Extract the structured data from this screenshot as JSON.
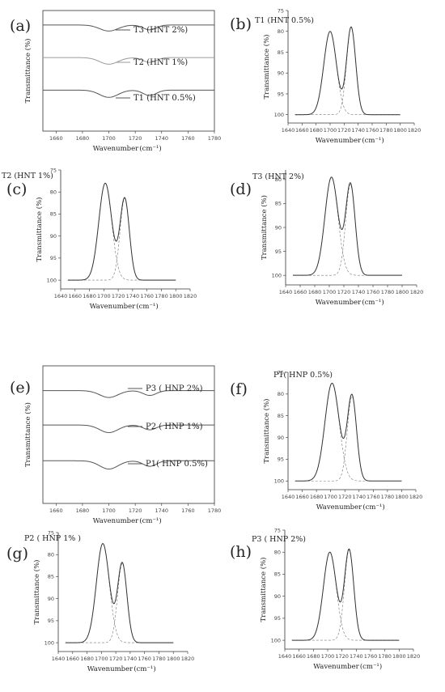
{
  "figure": {
    "panels": [
      "(a)",
      "(b)",
      "(c)",
      "(d)",
      "(e)",
      "(f)",
      "(g)",
      "(h)"
    ]
  },
  "chart_data": [
    {
      "panel": "(a)",
      "type": "line",
      "title": "",
      "xlabel": "Wavenumber",
      "xunit": "cm⁻¹",
      "ylabel": "Transmittance (%)",
      "xlim": [
        1650,
        1780
      ],
      "xticks": [
        1660,
        1680,
        1700,
        1720,
        1740,
        1760,
        1780
      ],
      "series": [
        {
          "name": "T3 (HNT 2%)",
          "color": "#555555",
          "offset": 0.16,
          "band1": 0.1,
          "band2": 0.08
        },
        {
          "name": "T2 (HNT 1%)",
          "color": "#9a9a9a",
          "offset": 0.43,
          "band1": 0.11,
          "band2": 0.08
        },
        {
          "name": "T1 (HNT 0.5%)",
          "color": "#555555",
          "offset": 0.7,
          "band1": 0.12,
          "band2": 0.09
        }
      ],
      "band_centers": [
        1700,
        1731
      ]
    },
    {
      "panel": "(b)",
      "type": "line",
      "annotation": "T1 (HNT 0.5%)",
      "xlabel": "Wavenumber",
      "xunit": "cm⁻¹",
      "ylabel": "Transmittance (%)",
      "xlim": [
        1640,
        1820
      ],
      "ylim": [
        75,
        102
      ],
      "yticks": [
        75,
        80,
        85,
        90,
        95,
        100
      ],
      "xticks": [
        1640,
        1660,
        1680,
        1700,
        1720,
        1740,
        1760,
        1780,
        1800,
        1820
      ],
      "baseline": 100,
      "fit_start": 1650,
      "fit_end": 1800,
      "peaks": [
        {
          "center": 1700,
          "min_transmittance": 80.0,
          "width": 9
        },
        {
          "center": 1730,
          "min_transmittance": 79.0,
          "width": 6.5
        }
      ]
    },
    {
      "panel": "(c)",
      "type": "line",
      "annotation": "T2 (HNT 1%)",
      "xlabel": "Wavenumber",
      "xunit": "cm⁻¹",
      "ylabel": "Transmittance (%)",
      "xlim": [
        1640,
        1820
      ],
      "ylim": [
        75,
        102
      ],
      "yticks": [
        75,
        80,
        85,
        90,
        95,
        100
      ],
      "xticks": [
        1640,
        1660,
        1680,
        1700,
        1720,
        1740,
        1760,
        1780,
        1800,
        1820
      ],
      "baseline": 100,
      "fit_start": 1650,
      "fit_end": 1800,
      "peaks": [
        {
          "center": 1702,
          "min_transmittance": 78.0,
          "width": 9
        },
        {
          "center": 1729,
          "min_transmittance": 81.5,
          "width": 6.5
        }
      ]
    },
    {
      "panel": "(d)",
      "type": "line",
      "annotation": "T3 (HNT 2%)",
      "xlabel": "Wavenumber",
      "xunit": "cm⁻¹",
      "ylabel": "Transmittance (%)",
      "xlim": [
        1640,
        1820
      ],
      "ylim": [
        78,
        102
      ],
      "yticks": [
        80,
        85,
        90,
        95,
        100
      ],
      "xticks": [
        1640,
        1660,
        1680,
        1700,
        1720,
        1740,
        1760,
        1780,
        1800,
        1820
      ],
      "baseline": 100,
      "fit_start": 1650,
      "fit_end": 1800,
      "peaks": [
        {
          "center": 1703,
          "min_transmittance": 79.5,
          "width": 9
        },
        {
          "center": 1729,
          "min_transmittance": 81.0,
          "width": 6.5
        }
      ]
    },
    {
      "panel": "(e)",
      "type": "line",
      "title": "",
      "xlabel": "Wavenumber",
      "xunit": "cm⁻¹",
      "ylabel": "Transmittance (%)",
      "xlim": [
        1650,
        1780
      ],
      "xticks": [
        1660,
        1680,
        1700,
        1720,
        1740,
        1760,
        1780
      ],
      "series": [
        {
          "name": "P3 ( HNP 2%)",
          "color": "#555555",
          "offset": 0.22,
          "band1": 0.1,
          "band2": 0.07
        },
        {
          "name": "P2 ( HNP 1%)",
          "color": "#555555",
          "offset": 0.47,
          "band1": 0.11,
          "band2": 0.07
        },
        {
          "name": "P1( HNP 0.5%)",
          "color": "#555555",
          "offset": 0.73,
          "band1": 0.12,
          "band2": 0.08
        }
      ],
      "band_centers": [
        1700,
        1731
      ]
    },
    {
      "panel": "(f)",
      "type": "line",
      "annotation": "P1( HNP 0.5%)",
      "xlabel": "Wavenumber",
      "xunit": "cm⁻¹",
      "ylabel": "Transmittance (%)",
      "xlim": [
        1640,
        1820
      ],
      "ylim": [
        75,
        102
      ],
      "yticks": [
        75,
        80,
        85,
        90,
        95,
        100
      ],
      "xticks": [
        1640,
        1660,
        1680,
        1700,
        1720,
        1740,
        1760,
        1780,
        1800,
        1820
      ],
      "baseline": 100,
      "fit_start": 1650,
      "fit_end": 1800,
      "peaks": [
        {
          "center": 1702,
          "min_transmittance": 77.5,
          "width": 10
        },
        {
          "center": 1730,
          "min_transmittance": 80.5,
          "width": 6.5
        }
      ]
    },
    {
      "panel": "(g)",
      "type": "line",
      "annotation": "P2 ( HNP 1% )",
      "xlabel": "Wavenumber",
      "xunit": "cm⁻¹",
      "ylabel": "Transmittance (%)",
      "xlim": [
        1640,
        1820
      ],
      "ylim": [
        75,
        102
      ],
      "yticks": [
        75,
        80,
        85,
        90,
        95,
        100
      ],
      "xticks": [
        1640,
        1660,
        1680,
        1700,
        1720,
        1740,
        1760,
        1780,
        1800,
        1820
      ],
      "baseline": 100,
      "fit_start": 1650,
      "fit_end": 1800,
      "peaks": [
        {
          "center": 1702,
          "min_transmittance": 77.5,
          "width": 9
        },
        {
          "center": 1729,
          "min_transmittance": 82.0,
          "width": 6.5
        }
      ]
    },
    {
      "panel": "(h)",
      "type": "line",
      "annotation": "P3 ( HNP 2%)",
      "xlabel": "Wavenumber",
      "xunit": "cm⁻¹",
      "ylabel": "Transmittance (%)",
      "xlim": [
        1640,
        1820
      ],
      "ylim": [
        75,
        102
      ],
      "yticks": [
        75,
        80,
        85,
        90,
        95,
        100
      ],
      "xticks": [
        1640,
        1660,
        1680,
        1700,
        1720,
        1740,
        1760,
        1780,
        1800,
        1820
      ],
      "baseline": 100,
      "fit_start": 1650,
      "fit_end": 1800,
      "peaks": [
        {
          "center": 1703,
          "min_transmittance": 80.0,
          "width": 9
        },
        {
          "center": 1730,
          "min_transmittance": 79.5,
          "width": 6.5
        }
      ]
    }
  ]
}
